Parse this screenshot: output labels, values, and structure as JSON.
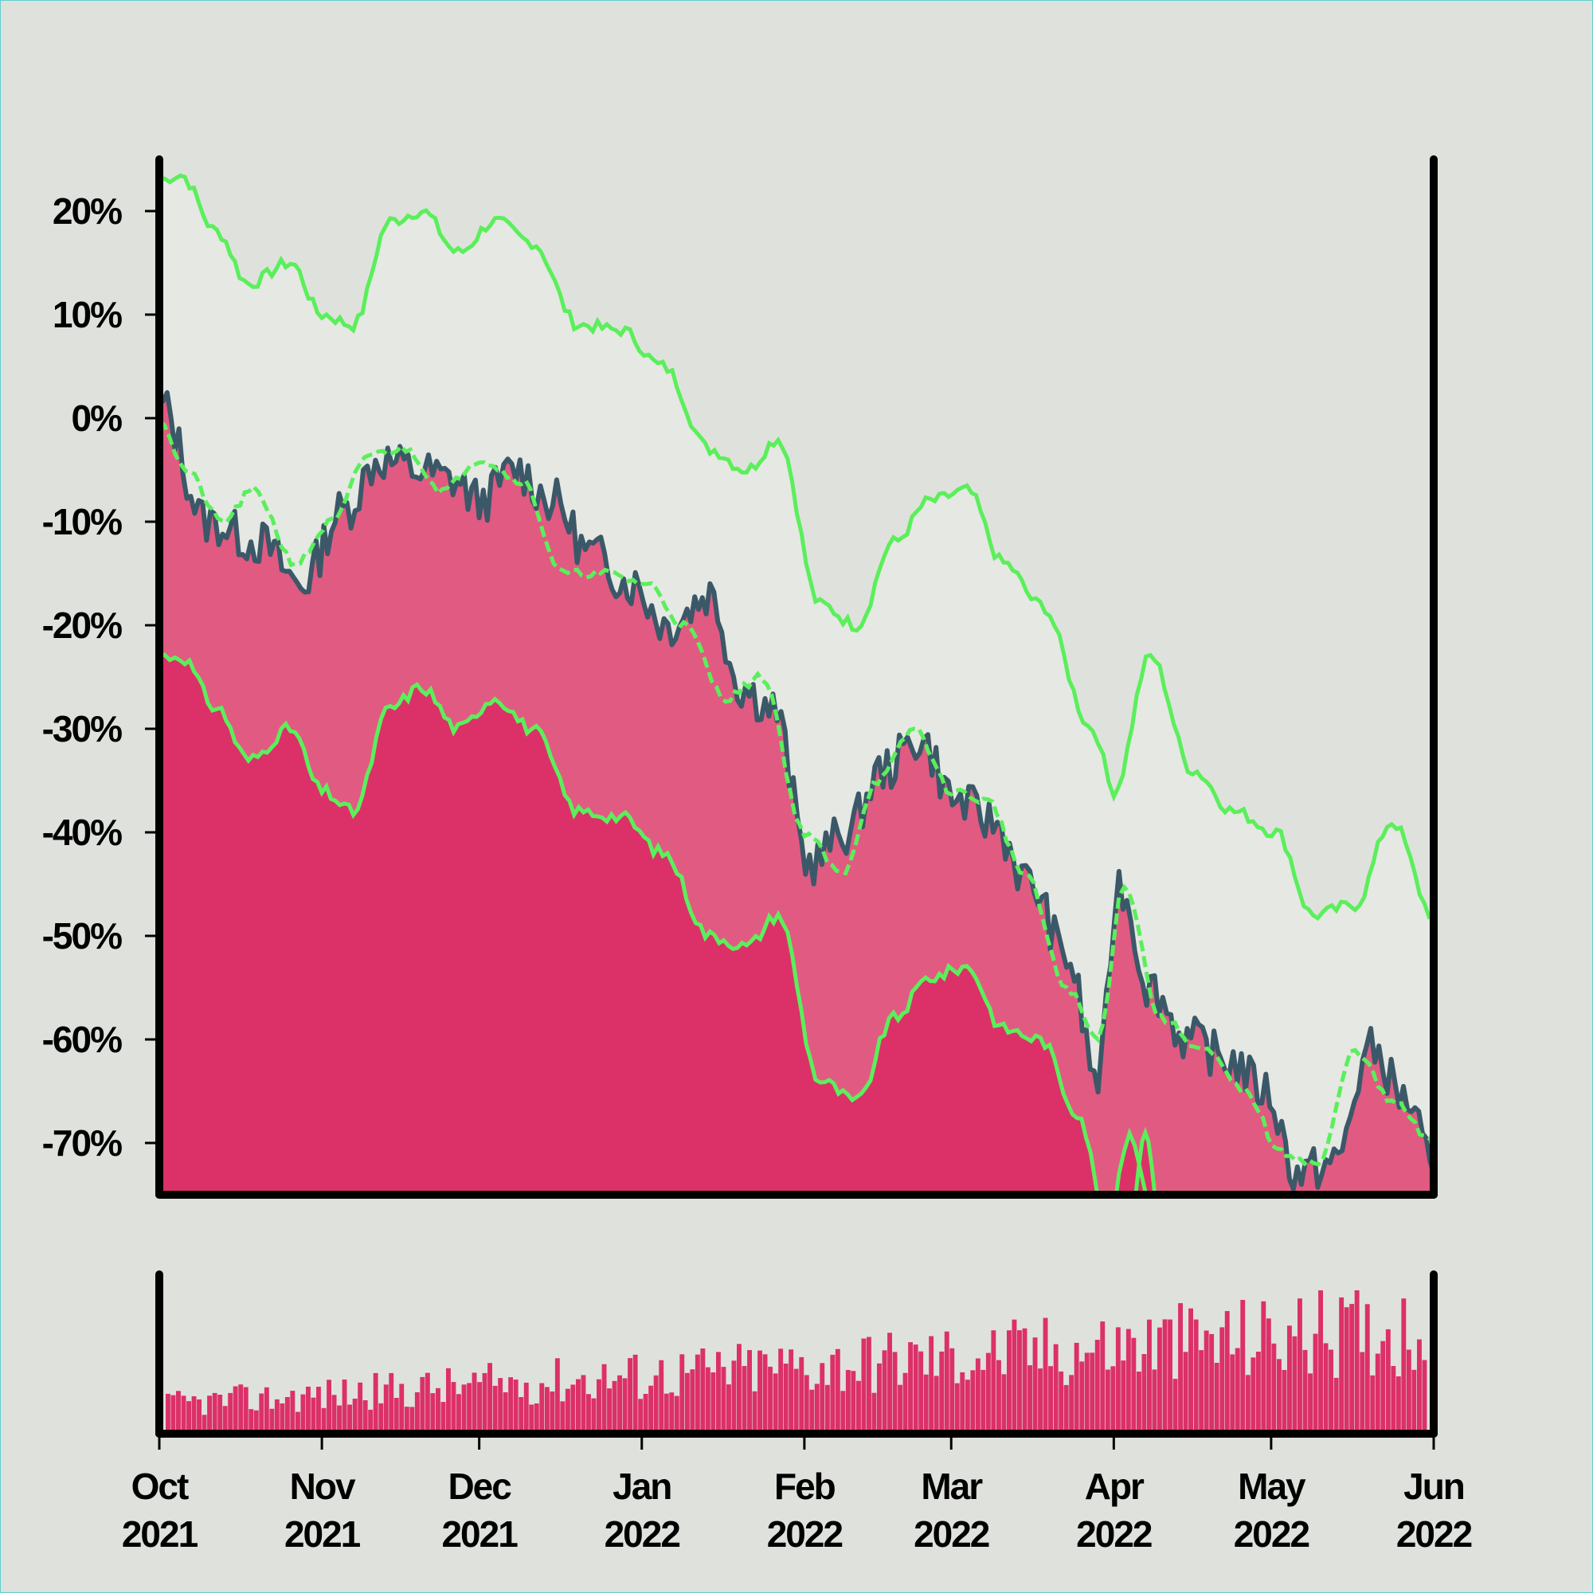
{
  "chart_data": [
    {
      "type": "area",
      "title": "",
      "xlabel": "",
      "ylabel": "",
      "x_range": [
        "2021-10-01",
        "2022-06-01"
      ],
      "ylim": [
        -75,
        25
      ],
      "y_ticks": [
        20,
        10,
        0,
        -10,
        -20,
        -30,
        -40,
        -50,
        -60,
        -70
      ],
      "y_tick_labels": [
        "20%",
        "10%",
        "0%",
        "-10%",
        "-20%",
        "-30%",
        "-40%",
        "-50%",
        "-60%",
        "-70%"
      ],
      "x_ticks": [
        "2021-10-01",
        "2021-11-01",
        "2021-12-01",
        "2022-01-01",
        "2022-02-01",
        "2022-03-01",
        "2022-04-01",
        "2022-05-01",
        "2022-06-01"
      ],
      "x_tick_labels": [
        {
          "month": "Oct",
          "year": "2021"
        },
        {
          "month": "Nov",
          "year": "2021"
        },
        {
          "month": "Dec",
          "year": "2021"
        },
        {
          "month": "Jan",
          "year": "2022"
        },
        {
          "month": "Feb",
          "year": "2022"
        },
        {
          "month": "Mar",
          "year": "2022"
        },
        {
          "month": "Apr",
          "year": "2022"
        },
        {
          "month": "May",
          "year": "2022"
        },
        {
          "month": "Jun",
          "year": "2022"
        }
      ],
      "grid": false,
      "legend": "none",
      "colors": {
        "background": "#dfe2dc",
        "band_fill": "#e5e8e3",
        "drawdown_fill": "#e15a82",
        "lower_fill": "#dc3069",
        "drawdown_line": "#3b5868",
        "band_lines": "#5bef5b",
        "axis": "#000000"
      },
      "series": [
        {
          "role": "drawdown",
          "x": [
            "2021-10-01",
            "2021-10-10",
            "2021-10-20",
            "2021-10-28",
            "2021-11-05",
            "2021-11-12",
            "2021-11-19",
            "2021-11-26",
            "2021-12-01",
            "2021-12-08",
            "2021-12-15",
            "2021-12-22",
            "2021-12-30",
            "2022-01-06",
            "2022-01-14",
            "2022-01-20",
            "2022-01-26",
            "2022-02-02",
            "2022-02-09",
            "2022-02-16",
            "2022-02-23",
            "2022-03-02",
            "2022-03-09",
            "2022-03-16",
            "2022-03-23",
            "2022-03-29",
            "2022-04-02",
            "2022-04-08",
            "2022-04-15",
            "2022-04-23",
            "2022-04-30",
            "2022-05-06",
            "2022-05-13",
            "2022-05-20",
            "2022-05-27",
            "2022-06-01"
          ],
          "y": [
            1.5,
            -10,
            -12,
            -16,
            -9,
            -4,
            -5,
            -6,
            -8,
            -5,
            -8,
            -13,
            -16,
            -20,
            -17,
            -26,
            -28,
            -43,
            -40,
            -34,
            -31,
            -37,
            -39,
            -45,
            -52,
            -64,
            -45,
            -55,
            -60,
            -62,
            -65,
            -73,
            -72,
            -61,
            -66,
            -73
          ]
        },
        {
          "role": "upper_band",
          "x": [
            "2021-10-01",
            "2021-10-05",
            "2021-10-12",
            "2021-10-18",
            "2021-10-26",
            "2021-11-01",
            "2021-11-07",
            "2021-11-14",
            "2021-11-20",
            "2021-11-27",
            "2021-12-04",
            "2021-12-11",
            "2021-12-20",
            "2021-12-28",
            "2022-01-05",
            "2022-01-14",
            "2022-01-21",
            "2022-01-27",
            "2022-02-04",
            "2022-02-11",
            "2022-02-18",
            "2022-02-25",
            "2022-03-04",
            "2022-03-11",
            "2022-03-18",
            "2022-03-28",
            "2022-04-01",
            "2022-04-08",
            "2022-04-16",
            "2022-04-24",
            "2022-05-02",
            "2022-05-09",
            "2022-05-17",
            "2022-05-24",
            "2022-06-01"
          ],
          "y": [
            23,
            23.5,
            18,
            13,
            15,
            10,
            9,
            19,
            20,
            16,
            19,
            17,
            9,
            8.5,
            5,
            -3,
            -5,
            -2,
            -18,
            -20,
            -12,
            -8,
            -7,
            -14,
            -18,
            -30,
            -36,
            -23,
            -34,
            -38,
            -40,
            -48,
            -47,
            -39,
            -48
          ]
        },
        {
          "role": "moving_average",
          "x": [
            "2021-10-01",
            "2021-10-06",
            "2021-10-13",
            "2021-10-19",
            "2021-10-27",
            "2021-11-03",
            "2021-11-10",
            "2021-11-17",
            "2021-11-24",
            "2021-12-01",
            "2021-12-09",
            "2021-12-17",
            "2021-12-25",
            "2022-01-02",
            "2022-01-09",
            "2022-01-17",
            "2022-01-24",
            "2022-02-01",
            "2022-02-08",
            "2022-02-15",
            "2022-02-22",
            "2022-03-01",
            "2022-03-08",
            "2022-03-15",
            "2022-03-23",
            "2022-03-29",
            "2022-04-03",
            "2022-04-10",
            "2022-04-18",
            "2022-04-26",
            "2022-05-03",
            "2022-05-10",
            "2022-05-17",
            "2022-05-24",
            "2022-06-01"
          ],
          "y": [
            0,
            -5,
            -10,
            -7,
            -14,
            -10,
            -3.5,
            -3,
            -7,
            -4,
            -6,
            -15,
            -15,
            -16,
            -20,
            -27,
            -25,
            -40,
            -44,
            -35,
            -30,
            -36,
            -37,
            -44,
            -55,
            -60,
            -45,
            -58,
            -61,
            -65,
            -71,
            -72,
            -61,
            -66,
            -70
          ]
        },
        {
          "role": "lower_band",
          "x": [
            "2021-10-01",
            "2021-10-05",
            "2021-10-12",
            "2021-10-18",
            "2021-10-26",
            "2021-11-01",
            "2021-11-07",
            "2021-11-14",
            "2021-11-20",
            "2021-11-27",
            "2021-12-04",
            "2021-12-11",
            "2021-12-20",
            "2021-12-28",
            "2022-01-05",
            "2022-01-14",
            "2022-01-21",
            "2022-01-27",
            "2022-02-04",
            "2022-02-11",
            "2022-02-18",
            "2022-02-25",
            "2022-03-04",
            "2022-03-11",
            "2022-03-18",
            "2022-03-25",
            "2022-03-31",
            "2022-04-04",
            "2022-04-09"
          ],
          "y": [
            -23,
            -23,
            -28,
            -33,
            -30,
            -36,
            -38,
            -28,
            -26,
            -30,
            -27,
            -30,
            -38,
            -38.5,
            -42,
            -50,
            -51,
            -48,
            -64,
            -66,
            -58,
            -54,
            -53,
            -59,
            -60,
            -67,
            -78,
            -69,
            -78
          ]
        }
      ]
    },
    {
      "type": "bar",
      "title": "",
      "role": "volume_panel",
      "x_range": [
        "2021-10-01",
        "2022-06-01"
      ],
      "trend_start": 0.25,
      "trend_end": 0.9,
      "values_note_free": true,
      "colors": {
        "bar": "#dc3069"
      }
    }
  ]
}
